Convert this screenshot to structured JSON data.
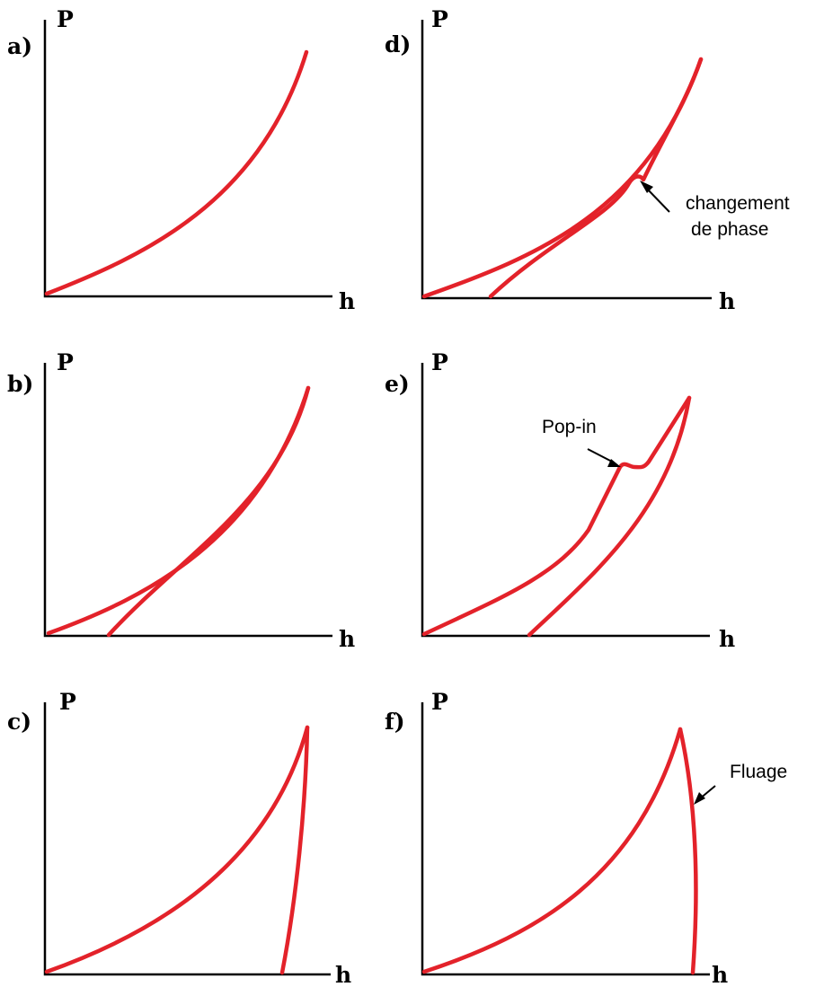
{
  "colors": {
    "curve": "#e3222a",
    "axis": "#000000",
    "text": "#000000"
  },
  "panels": [
    {
      "id": "a",
      "letter": "a)",
      "ylabel": "P",
      "xlabel": "h"
    },
    {
      "id": "b",
      "letter": "b)",
      "ylabel": "P",
      "xlabel": "h"
    },
    {
      "id": "c",
      "letter": "c)",
      "ylabel": "P",
      "xlabel": "h"
    },
    {
      "id": "d",
      "letter": "d)",
      "ylabel": "P",
      "xlabel": "h",
      "annotation_line1": "changement",
      "annotation_line2": "de phase"
    },
    {
      "id": "e",
      "letter": "e)",
      "ylabel": "P",
      "xlabel": "h",
      "annotation": "Pop-in"
    },
    {
      "id": "f",
      "letter": "f)",
      "ylabel": "P",
      "xlabel": "h",
      "annotation": "Fluage"
    }
  ]
}
